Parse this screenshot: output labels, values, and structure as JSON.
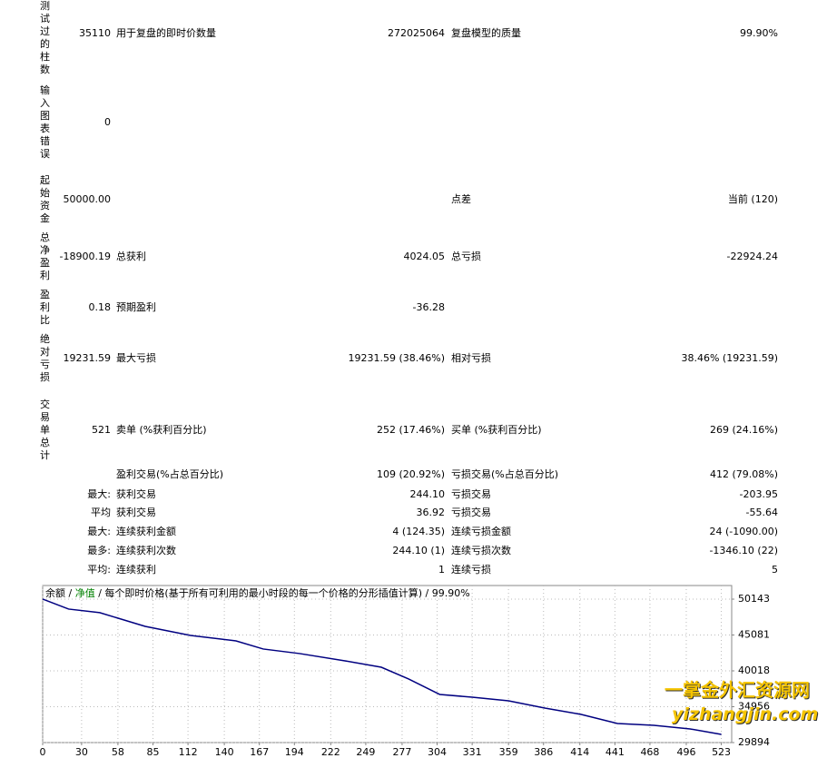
{
  "report": {
    "rows": [
      {
        "label": "测试过的柱数",
        "value": "35110",
        "name1": "用于复盘的即时价数量",
        "value1": "272025064",
        "name2": "复盘模型的质量",
        "value2": "99.90%"
      },
      {
        "label": "输入图表错误",
        "value": "0"
      },
      {
        "label": "起始资金",
        "value": "50000.00",
        "name2": "点差",
        "value2": "当前 (120)"
      },
      {
        "label": "总净盈利",
        "value": "-18900.19",
        "name1": "总获利",
        "value1": "4024.05",
        "name2": "总亏损",
        "value2": "-22924.24"
      },
      {
        "label": "盈利比",
        "value": "0.18",
        "name1": "预期盈利",
        "value1": "-36.28"
      },
      {
        "label": "绝对亏损",
        "value": "19231.59",
        "name1": "最大亏损",
        "value1": "19231.59 (38.46%)",
        "name2": "相对亏损",
        "value2": "38.46% (19231.59)"
      },
      {
        "label": "交易单总计",
        "value": "521",
        "name1": "卖单 (%获利百分比)",
        "value1": "252 (17.46%)",
        "name2": "买单 (%获利百分比)",
        "value2": "269 (24.16%)"
      },
      {
        "name1": "盈利交易(%占总百分比)",
        "value1": "109 (20.92%)",
        "name2": "亏损交易(%占总百分比)",
        "value2": "412 (79.08%)"
      },
      {
        "prefix": "最大:",
        "name1": "获利交易",
        "value1": "244.10",
        "name2": "亏损交易",
        "value2": "-203.95"
      },
      {
        "prefix": "平均",
        "name1": "获利交易",
        "value1": "36.92",
        "name2": "亏损交易",
        "value2": "-55.64"
      },
      {
        "prefix": "最大:",
        "name1": "连续获利金额",
        "value1": "4 (124.35)",
        "name2": "连续亏损金额",
        "value2": "24 (-1090.00)"
      },
      {
        "prefix": "最多:",
        "name1": "连续获利次数",
        "value1": "244.10 (1)",
        "name2": "连续亏损次数",
        "value2": "-1346.10 (22)"
      },
      {
        "prefix": "平均:",
        "name1": "连续获利",
        "value1": "1",
        "name2": "连续亏损",
        "value2": "5"
      }
    ]
  },
  "chart_data": {
    "type": "line",
    "legend": [
      {
        "text": "余额",
        "color": "#000000"
      },
      {
        "text": "净值",
        "color": "#008000"
      },
      {
        "text": "每个即时价格(基于所有可利用的最小时段的每一个价格的分形插值计算)",
        "color": "#000000"
      },
      {
        "text": "99.90%",
        "color": "#000000"
      }
    ],
    "legend_separator": "/",
    "x": [
      0,
      20,
      44,
      79,
      114,
      149,
      170,
      198,
      233,
      261,
      282,
      306,
      331,
      359,
      387,
      415,
      443,
      471,
      499,
      523
    ],
    "series": [
      {
        "name": "余额",
        "color": "#000080",
        "values": [
          50150,
          48740,
          48230,
          46300,
          45020,
          44250,
          43100,
          42460,
          41430,
          40530,
          38870,
          36690,
          36300,
          35790,
          34760,
          33870,
          32590,
          32330,
          31820,
          31050
        ]
      }
    ],
    "xlim": [
      0,
      531
    ],
    "ylim": [
      29894,
      52064
    ],
    "xticks": [
      0,
      30,
      58,
      85,
      112,
      140,
      167,
      194,
      222,
      249,
      277,
      304,
      331,
      359,
      386,
      414,
      441,
      468,
      496,
      523
    ],
    "yticks": [
      29894,
      34956,
      40018,
      45081,
      50143
    ],
    "grid": true
  },
  "watermark": {
    "title": "一掌金外汇资源网",
    "url": "yizhangjin.com"
  }
}
